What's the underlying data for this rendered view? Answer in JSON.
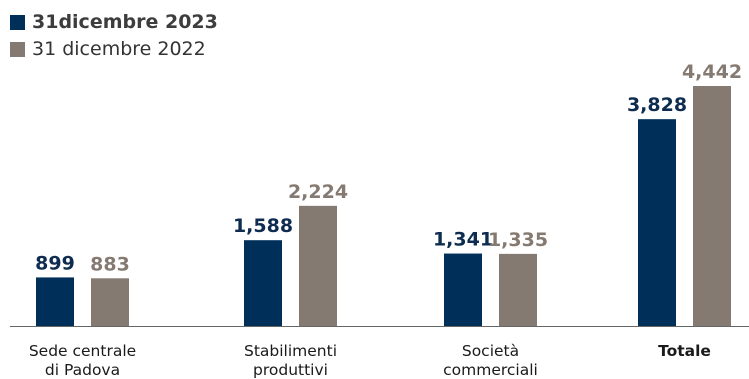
{
  "chart_data": {
    "type": "bar",
    "categories": [
      {
        "lines": [
          "Sede centrale",
          "di Padova"
        ],
        "bold": false
      },
      {
        "lines": [
          "Stabilimenti",
          "produttivi"
        ],
        "bold": false
      },
      {
        "lines": [
          "Società",
          "commerciali"
        ],
        "bold": false
      },
      {
        "lines": [
          "Totale"
        ],
        "bold": true
      }
    ],
    "series": [
      {
        "name": "31dicembre 2023",
        "color": "#002f5a",
        "label_color": "#0d2c50",
        "values": [
          899,
          1588,
          1341,
          3828
        ],
        "labels": [
          "899",
          "1,588",
          "1,341",
          "3,828"
        ],
        "bold_legend": true
      },
      {
        "name": "31 dicembre 2022",
        "color": "#857a72",
        "label_color": "#857a72",
        "values": [
          883,
          2224,
          1335,
          4442
        ],
        "labels": [
          "883",
          "2,224",
          "1,335",
          "4,442"
        ],
        "bold_legend": false
      }
    ],
    "ylim": [
      0,
      4442
    ],
    "axis_color": "#666666",
    "grid": false,
    "legend_position": "top-left"
  }
}
